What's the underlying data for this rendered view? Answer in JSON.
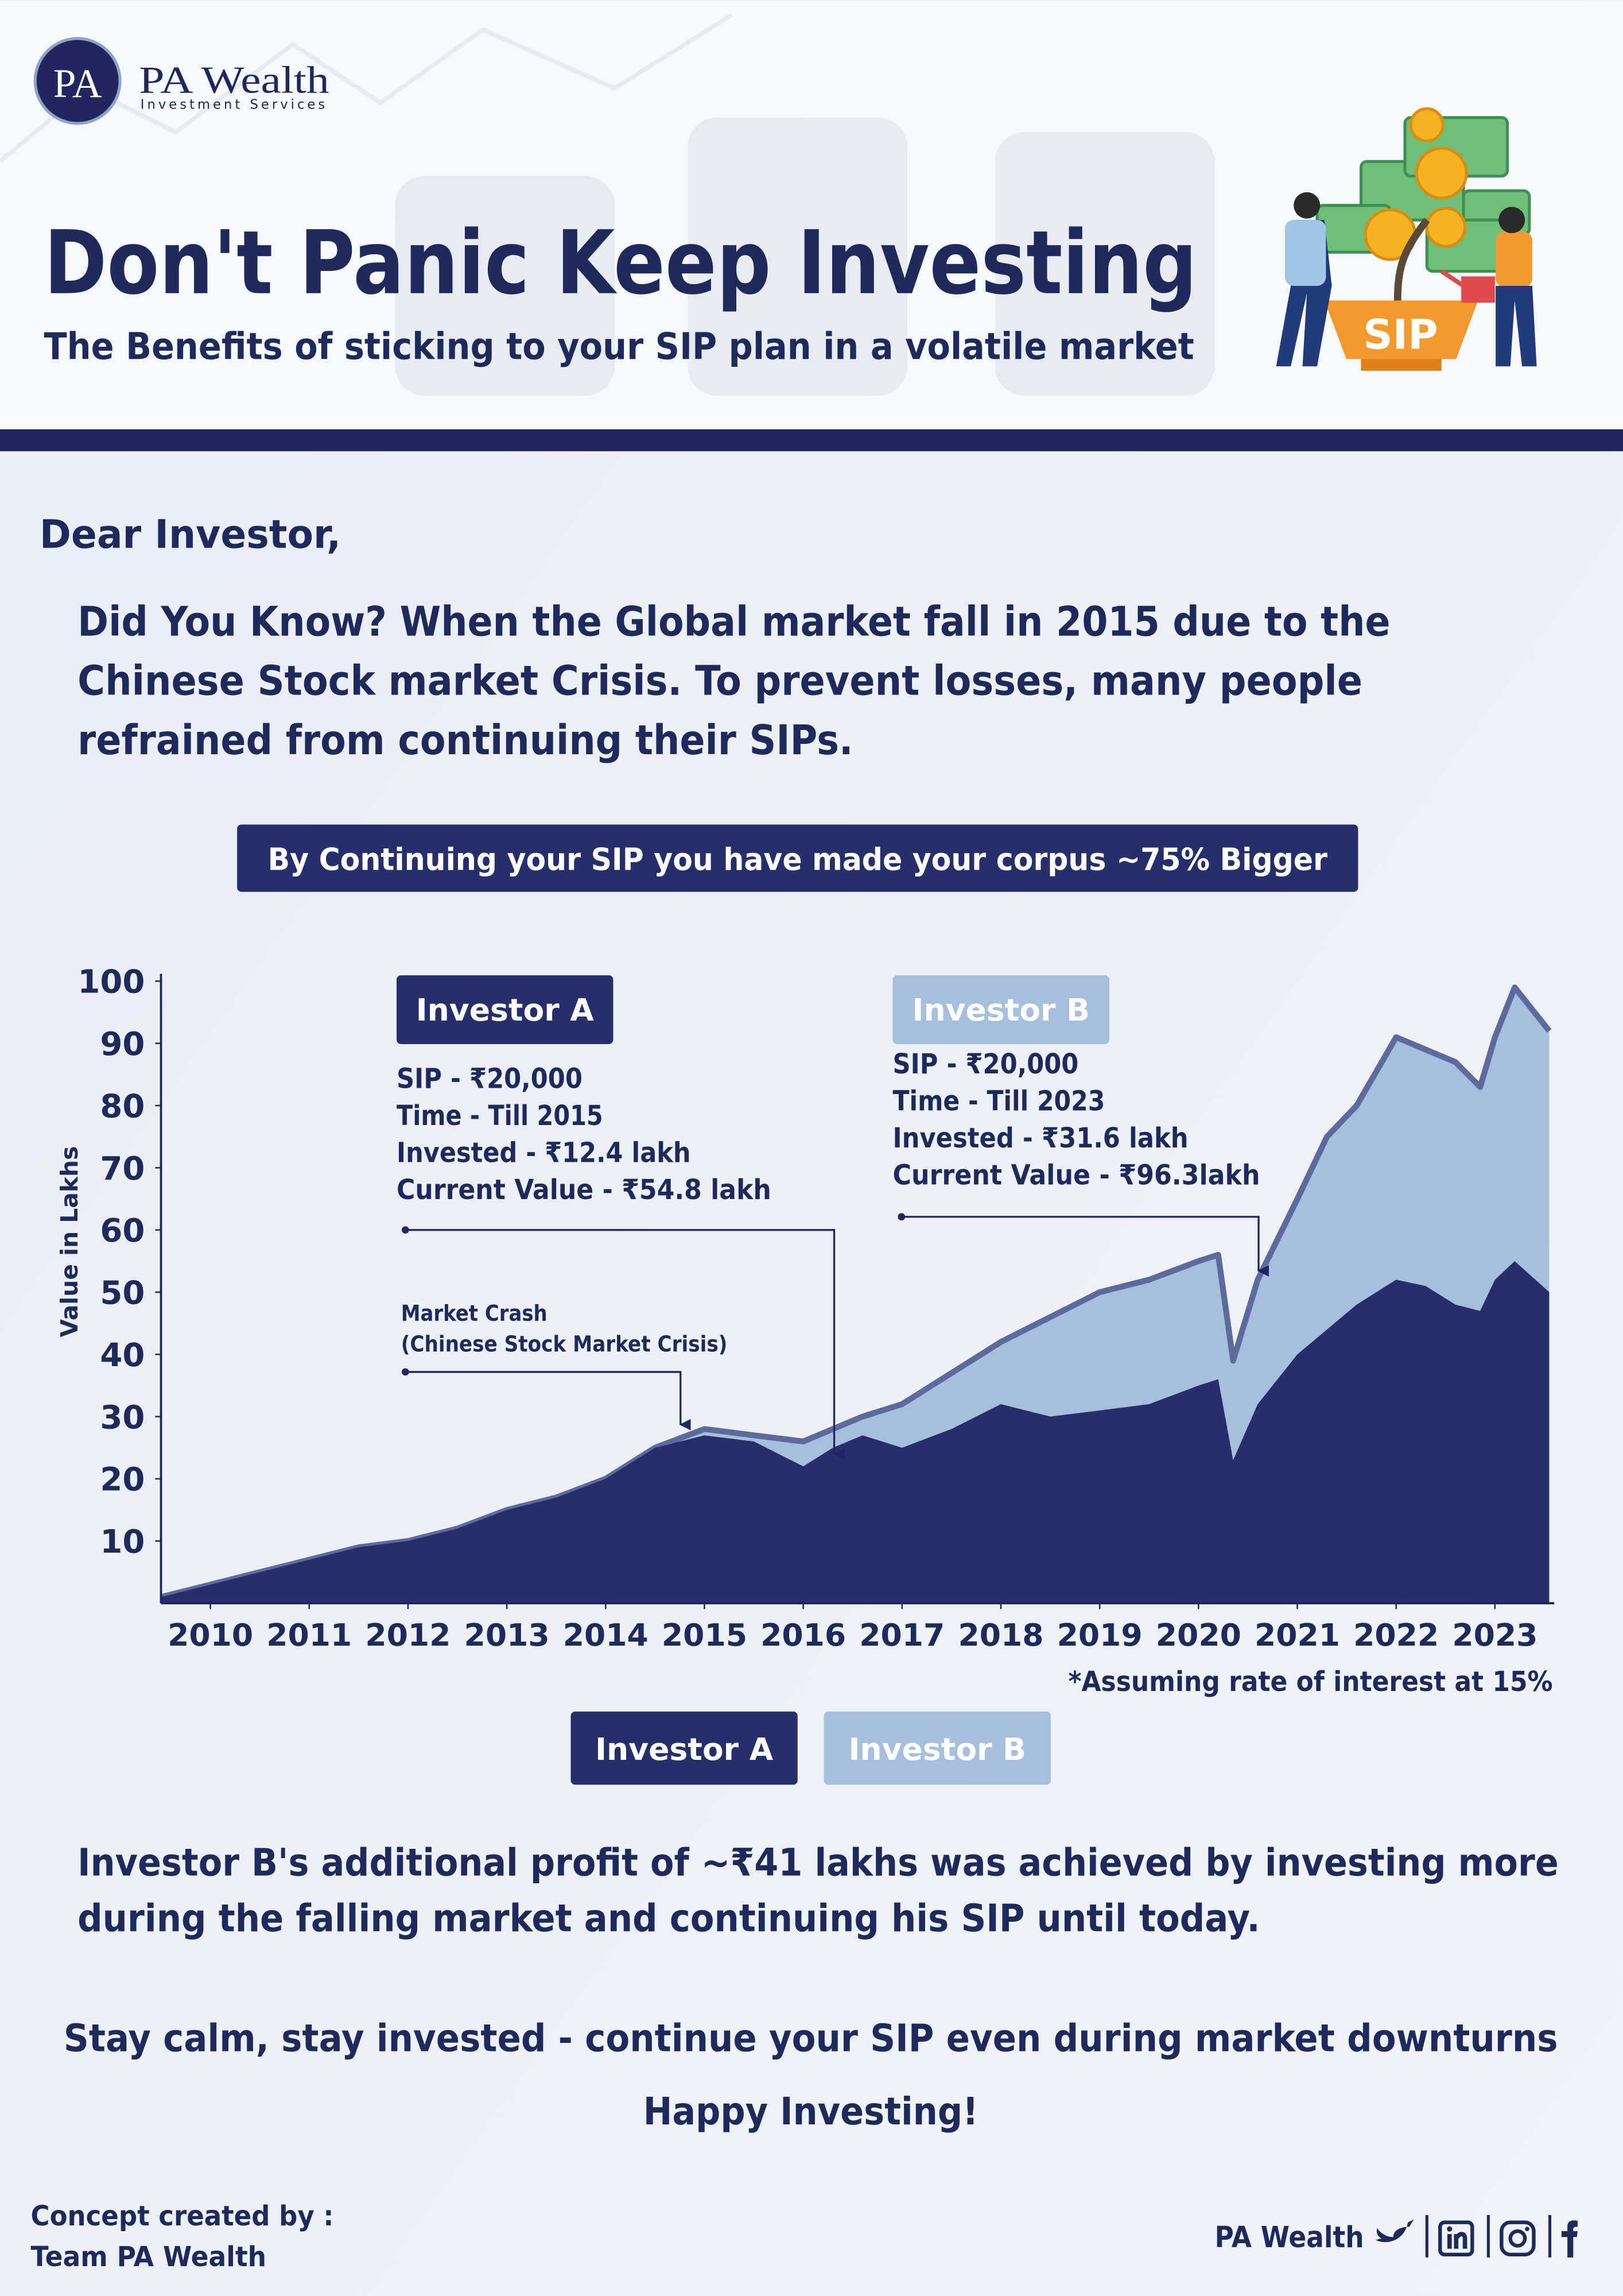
{
  "header": {
    "logo_mark": "PA",
    "brand": "PA Wealth",
    "brand_sub": "Investment Services",
    "title": "Don't Panic Keep Investing",
    "subtitle": "The Benefits of sticking to your SIP plan in a volatile market",
    "badge": "SIP"
  },
  "body": {
    "greeting": "Dear Investor,",
    "intro_lines": [
      "Did You Know? When the Global market fall in 2015 due to the",
      "Chinese Stock market Crisis. To prevent losses, many people",
      "refrained from continuing their SIPs."
    ],
    "banner": "By Continuing your SIP you have made your corpus ~75% Bigger",
    "closing_lines": [
      "Investor B's additional profit of ~₹41 lakhs was achieved by investing more",
      "during the falling market and continuing his SIP until today."
    ],
    "motto": "Stay calm, stay invested - continue your SIP even during market downturns",
    "signoff": "Happy Investing!"
  },
  "chart_data": {
    "type": "area",
    "ylabel": "Value in Lakhs",
    "x": [
      2009.5,
      2010,
      2010.5,
      2011,
      2011.5,
      2012,
      2012.5,
      2013,
      2013.5,
      2014,
      2014.5,
      2015,
      2015.5,
      2016,
      2016.3,
      2016.6,
      2017,
      2017.5,
      2018,
      2018.5,
      2019,
      2019.5,
      2020,
      2020.2,
      2020.35,
      2020.6,
      2021,
      2021.3,
      2021.6,
      2022,
      2022.3,
      2022.6,
      2022.85,
      2023,
      2023.2,
      2023.55
    ],
    "series": [
      {
        "name": "Investor A",
        "color": "#262e6b",
        "values": [
          1,
          3,
          5,
          7,
          9,
          10,
          12,
          15,
          17,
          20,
          25,
          27,
          26,
          22,
          25,
          27,
          25,
          28,
          32,
          30,
          31,
          32,
          35,
          36,
          23,
          32,
          40,
          44,
          48,
          52,
          51,
          48,
          47,
          52,
          55,
          50
        ]
      },
      {
        "name": "Investor B",
        "color": "#a6bfdc",
        "values": [
          1,
          3,
          5,
          7,
          9,
          10,
          12,
          15,
          17,
          20,
          25,
          28,
          27,
          26,
          28,
          30,
          32,
          37,
          42,
          46,
          50,
          52,
          55,
          56,
          39,
          52,
          65,
          75,
          80,
          91,
          89,
          87,
          83,
          91,
          99,
          92
        ]
      }
    ],
    "xlim": [
      2009.5,
      2023.6
    ],
    "xticks": [
      2010,
      2011,
      2012,
      2013,
      2014,
      2015,
      2016,
      2017,
      2018,
      2019,
      2020,
      2021,
      2022,
      2023
    ],
    "ylim": [
      0,
      100
    ],
    "yticks": [
      10,
      20,
      30,
      40,
      50,
      60,
      70,
      80,
      90,
      100
    ],
    "legend": "bottom",
    "annotations": [
      {
        "lines": [
          "SIP - ₹20,000",
          "Time - Till 2015",
          "Invested - ₹12.4 lakh",
          "Current Value - ₹54.8 lakh"
        ]
      },
      {
        "lines": [
          "SIP - ₹20,000",
          "Time - Till 2023",
          "Invested - ₹31.6 lakh",
          "Current Value - ₹96.3lakh"
        ]
      },
      {
        "lines": [
          "Market Crash",
          "(Chinese Stock Market Crisis)"
        ]
      }
    ],
    "note": "*Assuming rate of interest at 15%"
  },
  "footer": {
    "credit_lines": [
      "Concept created by :",
      "Team PA Wealth"
    ],
    "brand": "PA Wealth"
  }
}
